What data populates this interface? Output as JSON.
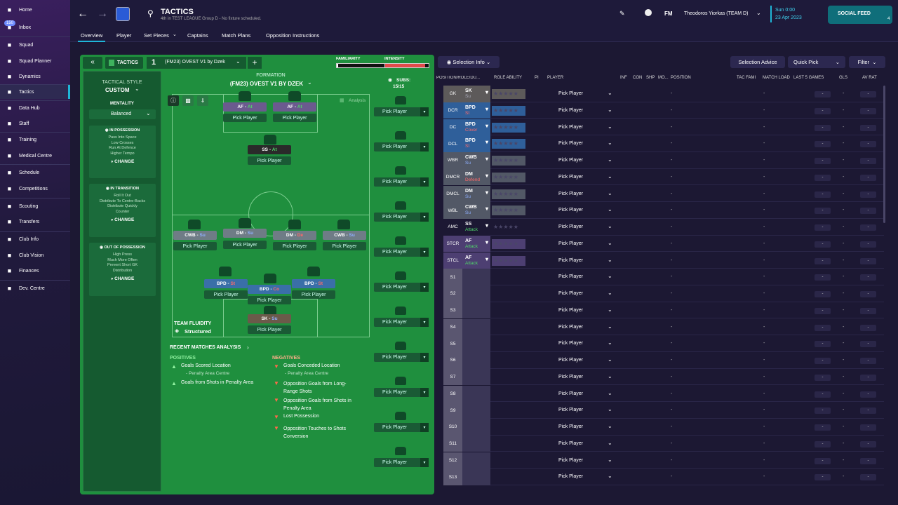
{
  "sidebar": {
    "items": [
      {
        "label": "Home",
        "icon": "home-icon"
      },
      {
        "label": "Inbox",
        "icon": "inbox-icon",
        "badge": "150"
      },
      {
        "label": "Squad",
        "icon": "squad-icon"
      },
      {
        "label": "Squad Planner",
        "icon": "planner-icon"
      },
      {
        "label": "Dynamics",
        "icon": "dynamics-icon"
      },
      {
        "label": "Tactics",
        "icon": "tactics-icon",
        "active": true
      },
      {
        "label": "Data Hub",
        "icon": "datahub-icon"
      },
      {
        "label": "Staff",
        "icon": "staff-icon"
      },
      {
        "label": "Training",
        "icon": "training-icon"
      },
      {
        "label": "Medical Centre",
        "icon": "medical-icon"
      },
      {
        "label": "Schedule",
        "icon": "schedule-icon"
      },
      {
        "label": "Competitions",
        "icon": "trophy-icon"
      },
      {
        "label": "Scouting",
        "icon": "scouting-icon"
      },
      {
        "label": "Transfers",
        "icon": "transfers-icon"
      },
      {
        "label": "Club Info",
        "icon": "clubinfo-icon"
      },
      {
        "label": "Club Vision",
        "icon": "vision-icon"
      },
      {
        "label": "Finances",
        "icon": "finances-icon"
      },
      {
        "label": "Dev. Centre",
        "icon": "devcentre-icon"
      }
    ]
  },
  "header": {
    "title": "TACTICS",
    "subtitle": "4th in TEST LEAGUE Group D - No fixture scheduled.",
    "logo": "FM",
    "manager": "Theodoros Yiorkas (TEAM D)",
    "date_line1": "Sun 0:00",
    "date_line2": "23 Apr 2023",
    "social": "SOCIAL FEED",
    "social_count": "4"
  },
  "subnav": {
    "tabs": [
      "Overview",
      "Player",
      "Set Pieces",
      "Captains",
      "Match Plans",
      "Opposition Instructions"
    ]
  },
  "tactic": {
    "label": "TACTICS",
    "slot": "1",
    "name": "(FM23) OVEST V1 by Dzek",
    "familiarity": "FAMILIARITY",
    "intensity": "INTENSITY",
    "familiarity_level": 0.03,
    "intensity_level": 0.92
  },
  "style": {
    "label": "TACTICAL STYLE",
    "value": "CUSTOM",
    "mentality_label": "MENTALITY",
    "mentality": "Balanced"
  },
  "phases": [
    {
      "title": "IN POSSESSION",
      "lines": [
        "Pass Into Space",
        "Low Crosses",
        "Run At Defence",
        "Higher Tempo"
      ],
      "change": "CHANGE"
    },
    {
      "title": "IN TRANSITION",
      "lines": [
        "Roll It Out",
        "Distribute To Centre-Backs",
        "Distribute Quickly",
        "Counter"
      ],
      "change": "CHANGE"
    },
    {
      "title": "OUT OF POSSESSION",
      "lines": [
        "High Press",
        "Much More Often",
        "Prevent Short GK",
        "Distribution"
      ],
      "change": "CHANGE"
    }
  ],
  "formation": {
    "label": "FORMATION",
    "name": "(FM23) OVEST V1 BY DZEK",
    "subs_label": "SUBS:",
    "subs_value": "15/15",
    "analysis": "Analysis",
    "fluidity_label": "TEAM FLUIDITY",
    "fluidity": "Structured",
    "pick": "Pick Player"
  },
  "pitch_roles": [
    {
      "role": "AF",
      "duty": "At",
      "bg": "#6b5a8f"
    },
    {
      "role": "AF",
      "duty": "At",
      "bg": "#6b5a8f"
    },
    {
      "role": "SS",
      "duty": "At",
      "bg": "#2a2a2a"
    },
    {
      "role": "CWB",
      "duty": "Su",
      "bg": "#6f7c86"
    },
    {
      "role": "DM",
      "duty": "Su",
      "bg": "#6f7c86"
    },
    {
      "role": "DM",
      "duty": "De",
      "bg": "#6f7c86"
    },
    {
      "role": "CWB",
      "duty": "Su",
      "bg": "#6f7c86"
    },
    {
      "role": "BPD",
      "duty": "St",
      "bg": "#3a6fa8"
    },
    {
      "role": "BPD",
      "duty": "Co",
      "bg": "#3a6fa8"
    },
    {
      "role": "BPD",
      "duty": "St",
      "bg": "#3a6fa8"
    },
    {
      "role": "SK",
      "duty": "Su",
      "bg": "#6b5a4a"
    }
  ],
  "analysis": {
    "title": "RECENT MATCHES ANALYSIS",
    "positives_label": "POSITIVES",
    "negatives_label": "NEGATIVES",
    "positives": [
      {
        "text": "Goals Scored Location",
        "sub": "- Penalty Area Centre"
      },
      {
        "text": "Goals from Shots in Penalty Area",
        "sub": ""
      }
    ],
    "negatives": [
      {
        "text": "Goals Conceded Location",
        "sub": "- Penalty Area Centre"
      },
      {
        "text": "Opposition Goals from Long-Range Shots",
        "sub": ""
      },
      {
        "text": "Opposition Goals from Shots in Penalty Area",
        "sub": ""
      },
      {
        "text": "Lost Possession",
        "sub": ""
      },
      {
        "text": "Opposition Touches to Shots Conversion",
        "sub": ""
      }
    ]
  },
  "right": {
    "selection_info": "Selection Info",
    "selection_advice": "Selection Advice",
    "quick_pick": "Quick Pick",
    "filter": "Filter",
    "columns": [
      "POSITION/ROLE/DU...",
      "ROLE ABILITY",
      "PI",
      "PLAYER",
      "INF",
      "CON",
      "SHP",
      "MO...",
      "POSITION",
      "TAC FAMI",
      "MATCH LOAD",
      "LAST 5 GAMES",
      "GLS",
      "AV RAT"
    ],
    "rows": [
      {
        "pos": "GK",
        "role": "SK",
        "duty": "Su",
        "bg": "#5d5a5a",
        "duty_color": "#aab"
      },
      {
        "pos": "DCR",
        "role": "BPD",
        "duty": "St",
        "bg": "#2f5f9a",
        "duty_color": "#ff6a6a"
      },
      {
        "pos": "DC",
        "role": "BPD",
        "duty": "Cover",
        "bg": "#2f5f9a",
        "duty_color": "#ff6a6a"
      },
      {
        "pos": "DCL",
        "role": "BPD",
        "duty": "St",
        "bg": "#2f5f9a",
        "duty_color": "#ff6a6a"
      },
      {
        "pos": "WBR",
        "role": "CWB",
        "duty": "Su",
        "bg": "#525866",
        "duty_color": "#8fb0ff"
      },
      {
        "pos": "DMCR",
        "role": "DM",
        "duty": "Defend",
        "bg": "#525866",
        "duty_color": "#ff6a6a"
      },
      {
        "pos": "DMCL",
        "role": "DM",
        "duty": "Su",
        "bg": "#525866",
        "duty_color": "#8fb0ff"
      },
      {
        "pos": "WBL",
        "role": "CWB",
        "duty": "Su",
        "bg": "#525866",
        "duty_color": "#8fb0ff"
      },
      {
        "pos": "AMC",
        "role": "SS",
        "duty": "Attack",
        "bg": "#1c1833",
        "duty_color": "#4fd66a"
      },
      {
        "pos": "STCR",
        "role": "AF",
        "duty": "Attack",
        "bg": "#4d3f72",
        "duty_color": "#4fd66a"
      },
      {
        "pos": "STCL",
        "role": "AF",
        "duty": "Attack",
        "bg": "#4d3f72",
        "duty_color": "#4fd66a"
      },
      {
        "pos": "S1"
      },
      {
        "pos": "S2"
      },
      {
        "pos": "S3"
      },
      {
        "pos": "S4"
      },
      {
        "pos": "S5"
      },
      {
        "pos": "S6"
      },
      {
        "pos": "S7"
      },
      {
        "pos": "S8"
      },
      {
        "pos": "S9"
      },
      {
        "pos": "S10"
      },
      {
        "pos": "S11"
      },
      {
        "pos": "S12"
      },
      {
        "pos": "S13"
      }
    ],
    "pick": "Pick Player",
    "dash": "-"
  }
}
